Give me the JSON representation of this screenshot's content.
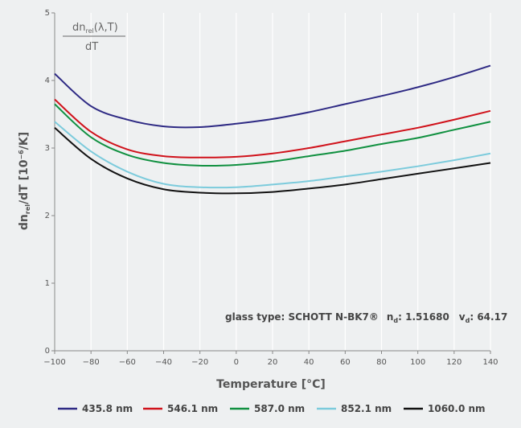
{
  "chart_data": {
    "type": "line",
    "xlabel": "Temperature [°C]",
    "ylabel_main": "dn",
    "ylabel_sub": "rel",
    "ylabel_rest": "/dT [10",
    "ylabel_sup": "−6",
    "ylabel_end": "/K]",
    "formula": {
      "num_main": "dn",
      "num_sub": "rel",
      "num_rest": "(λ,T)",
      "den": "dT"
    },
    "note": {
      "glass": "glass type: SCHOTT N-BK7®",
      "nd_label": "n",
      "nd_sub": "d",
      "nd_value": ": 1.51680",
      "vd_label": "v",
      "vd_sub": "d",
      "vd_value": ": 64.17"
    },
    "xlim": [
      -100,
      140
    ],
    "ylim": [
      0,
      5
    ],
    "x_ticks": [
      "−100",
      "−80",
      "−60",
      "−40",
      "−20",
      "0",
      "20",
      "40",
      "60",
      "80",
      "100",
      "120",
      "140"
    ],
    "y_ticks": [
      "0",
      "1",
      "2",
      "3",
      "4",
      "5"
    ],
    "grid": true,
    "x": [
      -100,
      -80,
      -60,
      -40,
      -20,
      0,
      20,
      40,
      60,
      80,
      100,
      120,
      140
    ],
    "series": [
      {
        "name": "435.8 nm",
        "color": "#2e2a84",
        "values": [
          4.1,
          3.62,
          3.42,
          3.32,
          3.31,
          3.36,
          3.43,
          3.53,
          3.65,
          3.77,
          3.9,
          4.05,
          4.22
        ]
      },
      {
        "name": "546.1 nm",
        "color": "#d0121b",
        "values": [
          3.72,
          3.24,
          2.98,
          2.88,
          2.86,
          2.87,
          2.92,
          3.0,
          3.1,
          3.2,
          3.3,
          3.42,
          3.55
        ]
      },
      {
        "name": "587.0 nm",
        "color": "#109040",
        "values": [
          3.65,
          3.16,
          2.9,
          2.78,
          2.74,
          2.75,
          2.8,
          2.88,
          2.96,
          3.06,
          3.15,
          3.27,
          3.39
        ]
      },
      {
        "name": "852.1 nm",
        "color": "#7ccbdc",
        "values": [
          3.39,
          2.95,
          2.65,
          2.47,
          2.42,
          2.42,
          2.46,
          2.51,
          2.58,
          2.65,
          2.73,
          2.82,
          2.92
        ]
      },
      {
        "name": "1060.0 nm",
        "color": "#111111",
        "values": [
          3.3,
          2.84,
          2.55,
          2.39,
          2.34,
          2.33,
          2.35,
          2.4,
          2.46,
          2.54,
          2.62,
          2.7,
          2.78
        ]
      }
    ],
    "legend_position": "bottom"
  }
}
